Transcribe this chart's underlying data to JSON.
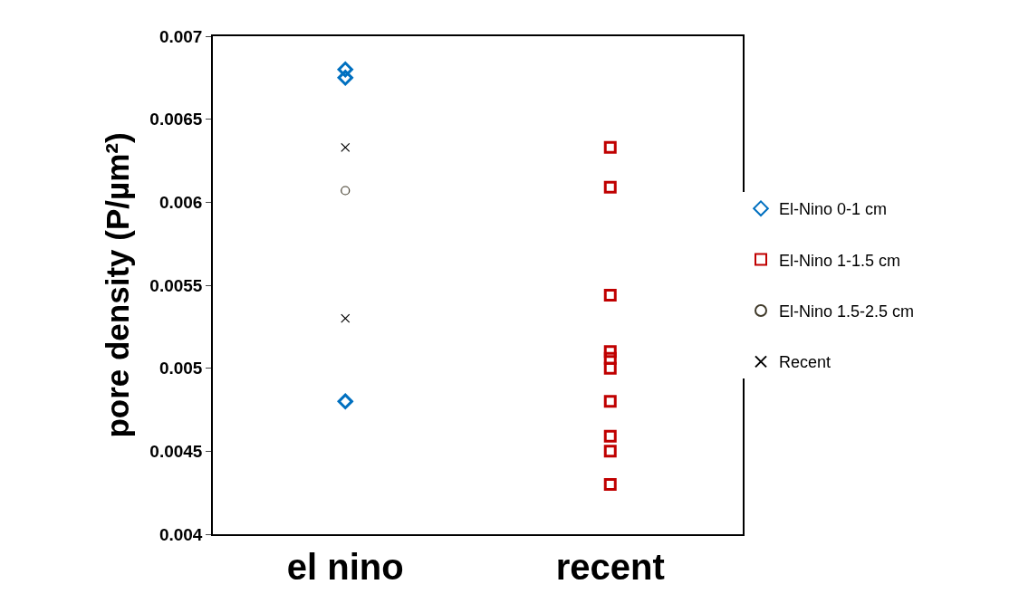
{
  "chart_data": {
    "type": "scatter",
    "ylabel": "pore density (P/µm²)",
    "categories": [
      "el nino",
      "recent"
    ],
    "series": [
      {
        "name": "El-Nino 0-1 cm",
        "color": "#0070c0",
        "marker": "diamond",
        "x": [
          "el nino",
          "el nino",
          "el nino"
        ],
        "values": [
          0.0068,
          0.00675,
          0.0048
        ]
      },
      {
        "name": "El-Nino 1-1.5 cm",
        "color": "#c00000",
        "marker": "square",
        "x": [
          "recent",
          "recent",
          "recent",
          "recent",
          "recent",
          "recent",
          "recent",
          "recent",
          "recent",
          "recent"
        ],
        "values": [
          0.00633,
          0.00609,
          0.00544,
          0.0051,
          0.00506,
          0.005,
          0.0048,
          0.00459,
          0.0045,
          0.0043
        ]
      },
      {
        "name": "El-Nino 1.5-2.5 cm",
        "color": "#403a2a",
        "marker": "circle",
        "x": [
          "el nino"
        ],
        "values": [
          0.00607
        ]
      },
      {
        "name": "Recent",
        "color": "#000000",
        "marker": "cross",
        "x": [
          "el nino",
          "el nino"
        ],
        "values": [
          0.00633,
          0.0053
        ]
      }
    ],
    "ylim": [
      0.004,
      0.007
    ],
    "yticks": [
      0.004,
      0.0045,
      0.005,
      0.0055,
      0.006,
      0.0065,
      0.007
    ],
    "grid": false,
    "legend": "right"
  }
}
